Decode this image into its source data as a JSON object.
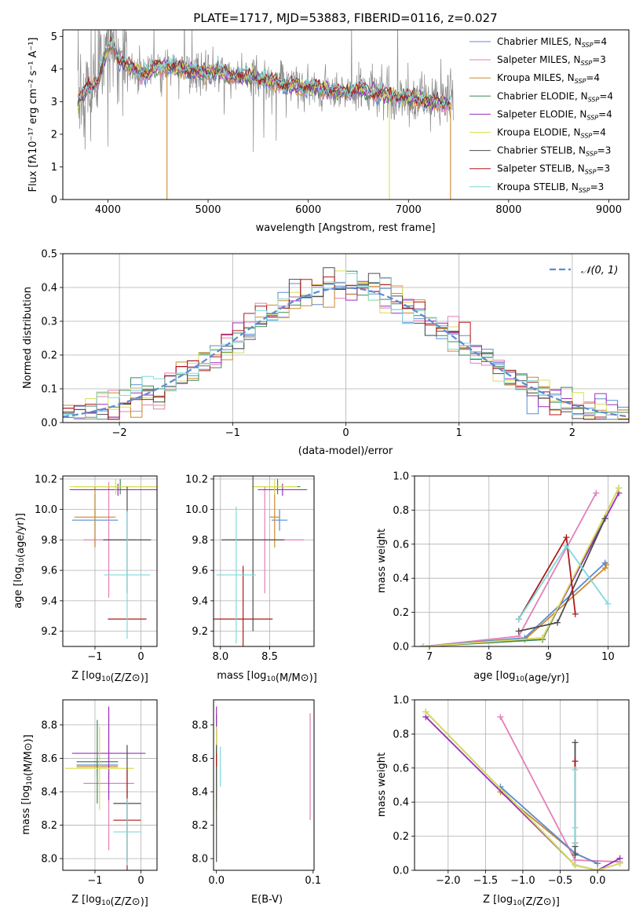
{
  "colors": {
    "chabrier_miles": "#5b8bd0",
    "salpeter_miles": "#e47fb9",
    "kroupa_miles": "#cc8a2e",
    "chabrier_elodie": "#3d8a57",
    "salpeter_elodie": "#9b2fbd",
    "kroupa_elodie": "#d8df54",
    "chabrier_stelib": "#4d4d4d",
    "salpeter_stelib": "#b01818",
    "kroupa_stelib": "#7fd8dc",
    "observed": "#888888",
    "normal_curve": "#5b8bd0",
    "mw_green": "#6ecb3b"
  },
  "chart_data": [
    {
      "id": "spectrum",
      "type": "line",
      "title": "PLATE=1717, MJD=53883, FIBERID=0116, z=0.027",
      "xlabel": "wavelength [Angstrom, rest frame]",
      "ylabel": "Flux [fλ10⁻¹⁷ erg cm⁻² s⁻¹ A⁻¹]",
      "xlim": [
        3550,
        9200
      ],
      "ylim": [
        0,
        5.2
      ],
      "xticks": [
        4000,
        5000,
        6000,
        7000,
        8000,
        9000
      ],
      "yticks": [
        0,
        1,
        2,
        3,
        4,
        5
      ],
      "grid": false,
      "legend_position": "top-right",
      "legend": [
        {
          "label": "Chabrier MILES, N",
          "sub": "SSP",
          "tail": "=4",
          "color_key": "chabrier_miles"
        },
        {
          "label": "Salpeter MILES, N",
          "sub": "SSP",
          "tail": "=3",
          "color_key": "salpeter_miles"
        },
        {
          "label": "Kroupa MILES, N",
          "sub": "SSP",
          "tail": "=4",
          "color_key": "kroupa_miles"
        },
        {
          "label": "Chabrier ELODIE, N",
          "sub": "SSP",
          "tail": "=4",
          "color_key": "chabrier_elodie"
        },
        {
          "label": "Salpeter ELODIE, N",
          "sub": "SSP",
          "tail": "=4",
          "color_key": "salpeter_elodie"
        },
        {
          "label": "Kroupa ELODIE, N",
          "sub": "SSP",
          "tail": "=4",
          "color_key": "kroupa_elodie"
        },
        {
          "label": "Chabrier STELIB, N",
          "sub": "SSP",
          "tail": "=3",
          "color_key": "chabrier_stelib"
        },
        {
          "label": "Salpeter STELIB, N",
          "sub": "SSP",
          "tail": "=3",
          "color_key": "salpeter_stelib"
        },
        {
          "label": "Kroupa STELIB, N",
          "sub": "SSP",
          "tail": "=3",
          "color_key": "kroupa_stelib"
        }
      ],
      "continuum": [
        [
          3700,
          3.0
        ],
        [
          3800,
          3.4
        ],
        [
          3900,
          3.6
        ],
        [
          3950,
          4.2
        ],
        [
          4000,
          4.6
        ],
        [
          4050,
          4.8
        ],
        [
          4100,
          4.3
        ],
        [
          4200,
          4.1
        ],
        [
          4300,
          3.9
        ],
        [
          4400,
          3.85
        ],
        [
          4500,
          4.1
        ],
        [
          4600,
          4.05
        ],
        [
          4700,
          4.0
        ],
        [
          4800,
          3.95
        ],
        [
          4900,
          3.9
        ],
        [
          5000,
          3.85
        ],
        [
          5100,
          3.95
        ],
        [
          5200,
          3.8
        ],
        [
          5300,
          3.8
        ],
        [
          5400,
          3.75
        ],
        [
          5500,
          3.7
        ],
        [
          5600,
          3.65
        ],
        [
          5700,
          3.6
        ],
        [
          5800,
          3.5
        ],
        [
          5900,
          3.45
        ],
        [
          6000,
          3.45
        ],
        [
          6100,
          3.4
        ],
        [
          6200,
          3.35
        ],
        [
          6300,
          3.3
        ],
        [
          6400,
          3.3
        ],
        [
          6500,
          3.4
        ],
        [
          6600,
          3.3
        ],
        [
          6700,
          3.25
        ],
        [
          6800,
          3.2
        ],
        [
          6900,
          3.15
        ],
        [
          7000,
          3.1
        ],
        [
          7100,
          3.05
        ],
        [
          7200,
          3.0
        ],
        [
          7300,
          2.95
        ],
        [
          7400,
          2.95
        ]
      ],
      "model_dropouts": [
        {
          "x": 4590,
          "color_key": "kroupa_miles"
        },
        {
          "x": 6810,
          "color_key": "kroupa_elodie"
        },
        {
          "x": 7420,
          "color_key": "kroupa_miles"
        }
      ]
    },
    {
      "id": "residuals",
      "type": "line",
      "xlabel": "(data-model)/error",
      "ylabel": "Normed distribution",
      "xlim": [
        -2.5,
        2.5
      ],
      "ylim": [
        0,
        0.5
      ],
      "xticks": [
        -2,
        -1,
        0,
        1,
        2
      ],
      "yticks": [
        0.0,
        0.1,
        0.2,
        0.3,
        0.4,
        0.5
      ],
      "grid": true,
      "legend_position": "top-right",
      "legend_label": "𝒩(0, 1)",
      "normal_curve": {
        "mean": 0,
        "sigma": 1
      },
      "histogram_bin_width": 0.1
    },
    {
      "id": "age-vs-z",
      "type": "scatter",
      "xlabel": "Z [log₁₀(Z/Z⊙)]",
      "ylabel": "age  [log₁₀(age/yr)]",
      "xlim": [
        -1.7,
        0.35
      ],
      "ylim": [
        9.1,
        10.22
      ],
      "xticks": [
        -1,
        0
      ],
      "yticks": [
        9.2,
        9.4,
        9.6,
        9.8,
        10.0,
        10.2
      ],
      "grid": true,
      "points": [
        {
          "x": -1.0,
          "y": 9.93,
          "xerr": 0.5,
          "yerr": 0.17,
          "color_key": "chabrier_miles"
        },
        {
          "x": -0.7,
          "y": 9.8,
          "xerr": 0.55,
          "yerr": 0.38,
          "color_key": "salpeter_miles"
        },
        {
          "x": -1.0,
          "y": 9.95,
          "xerr": 0.45,
          "yerr": 0.2,
          "color_key": "kroupa_miles"
        },
        {
          "x": -0.45,
          "y": 10.15,
          "xerr": 1.0,
          "yerr": 0.05,
          "color_key": "chabrier_elodie"
        },
        {
          "x": -0.5,
          "y": 10.13,
          "xerr": 1.05,
          "yerr": 0.04,
          "color_key": "salpeter_elodie"
        },
        {
          "x": -0.55,
          "y": 10.15,
          "xerr": 1.0,
          "yerr": 0.05,
          "color_key": "kroupa_elodie"
        },
        {
          "x": -0.3,
          "y": 9.8,
          "xerr": 0.52,
          "yerr": 0.35,
          "color_key": "chabrier_stelib"
        },
        {
          "x": -0.3,
          "y": 9.28,
          "xerr": 0.42,
          "yerr": 0.0,
          "color_key": "salpeter_stelib"
        },
        {
          "x": -0.3,
          "y": 9.57,
          "xerr": 0.5,
          "yerr": 0.42,
          "color_key": "kroupa_stelib"
        }
      ]
    },
    {
      "id": "age-vs-mass",
      "type": "scatter",
      "xlabel": "mass [log₁₀(M/M⊙)]",
      "ylabel": "",
      "xlim": [
        7.93,
        8.95
      ],
      "ylim": [
        9.1,
        10.22
      ],
      "xticks": [
        8.0,
        8.5
      ],
      "yticks": [
        9.2,
        9.4,
        9.6,
        9.8,
        10.0,
        10.2
      ],
      "grid": true,
      "points": [
        {
          "x": 8.6,
          "y": 9.93,
          "xerr": 0.08,
          "yerr": 0.07,
          "color_key": "chabrier_miles"
        },
        {
          "x": 8.45,
          "y": 9.8,
          "xerr": 0.4,
          "yerr": 0.35,
          "color_key": "salpeter_miles"
        },
        {
          "x": 8.55,
          "y": 9.95,
          "xerr": 0.05,
          "yerr": 0.2,
          "color_key": "kroupa_miles"
        },
        {
          "x": 8.58,
          "y": 10.15,
          "xerr": 0.23,
          "yerr": 0.05,
          "color_key": "chabrier_elodie"
        },
        {
          "x": 8.63,
          "y": 10.13,
          "xerr": 0.25,
          "yerr": 0.04,
          "color_key": "salpeter_elodie"
        },
        {
          "x": 8.55,
          "y": 10.15,
          "xerr": 0.23,
          "yerr": 0.05,
          "color_key": "kroupa_elodie"
        },
        {
          "x": 8.33,
          "y": 9.8,
          "xerr": 0.32,
          "yerr": 0.6,
          "color_key": "chabrier_stelib"
        },
        {
          "x": 8.23,
          "y": 9.28,
          "xerr": 0.3,
          "yerr": 0.35,
          "color_key": "salpeter_stelib"
        },
        {
          "x": 8.16,
          "y": 9.57,
          "xerr": 0.2,
          "yerr": 0.45,
          "color_key": "kroupa_stelib"
        }
      ]
    },
    {
      "id": "mw-vs-age",
      "type": "line",
      "xlabel": "age  [log₁₀(age/yr)]",
      "ylabel": "mass weight",
      "xlim": [
        6.75,
        10.35
      ],
      "ylim": [
        0,
        1.0
      ],
      "xticks": [
        7,
        8,
        9,
        10
      ],
      "yticks": [
        0.0,
        0.2,
        0.4,
        0.6,
        0.8,
        1.0
      ],
      "grid": true,
      "series": [
        {
          "color_key": "salpeter_miles",
          "points": [
            [
              6.9,
              0.0
            ],
            [
              8.5,
              0.06
            ],
            [
              9.8,
              0.9
            ]
          ]
        },
        {
          "color_key": "kroupa_miles",
          "points": [
            [
              6.9,
              0.0
            ],
            [
              8.6,
              0.04
            ],
            [
              9.95,
              0.46
            ],
            [
              9.97,
              0.48
            ]
          ]
        },
        {
          "color_key": "chabrier_miles",
          "points": [
            [
              6.9,
              0.0
            ],
            [
              8.6,
              0.05
            ],
            [
              9.95,
              0.49
            ]
          ]
        },
        {
          "color_key": "chabrier_elodie",
          "points": [
            [
              6.9,
              0.0
            ],
            [
              8.9,
              0.04
            ],
            [
              10.18,
              0.93
            ]
          ]
        },
        {
          "color_key": "salpeter_elodie",
          "points": [
            [
              6.9,
              0.0
            ],
            [
              8.9,
              0.05
            ],
            [
              10.18,
              0.9
            ]
          ]
        },
        {
          "color_key": "kroupa_elodie",
          "points": [
            [
              6.9,
              0.0
            ],
            [
              8.9,
              0.05
            ],
            [
              10.18,
              0.93
            ]
          ]
        },
        {
          "color_key": "chabrier_stelib",
          "points": [
            [
              8.5,
              0.09
            ],
            [
              9.15,
              0.14
            ],
            [
              9.95,
              0.75
            ]
          ]
        },
        {
          "color_key": "salpeter_stelib",
          "points": [
            [
              8.5,
              0.16
            ],
            [
              9.3,
              0.64
            ],
            [
              9.45,
              0.19
            ]
          ]
        },
        {
          "color_key": "kroupa_stelib",
          "points": [
            [
              8.5,
              0.16
            ],
            [
              9.3,
              0.59
            ],
            [
              10.0,
              0.25
            ]
          ]
        }
      ]
    },
    {
      "id": "mass-vs-z",
      "type": "scatter",
      "xlabel": "Z [log₁₀(Z/Z⊙)]",
      "ylabel": "mass [log₁₀(M/M⊙)]",
      "xlim": [
        -1.7,
        0.35
      ],
      "ylim": [
        7.93,
        8.95
      ],
      "xticks": [
        -1,
        0
      ],
      "yticks": [
        8.0,
        8.2,
        8.4,
        8.6,
        8.8
      ],
      "grid": true,
      "points": [
        {
          "x": -0.95,
          "y": 8.56,
          "xerr": 0.45,
          "yerr": 0.04,
          "color_key": "chabrier_miles"
        },
        {
          "x": -0.7,
          "y": 8.45,
          "xerr": 0.55,
          "yerr": 0.4,
          "color_key": "salpeter_miles"
        },
        {
          "x": -0.95,
          "y": 8.55,
          "xerr": 0.45,
          "yerr": 0.05,
          "color_key": "kroupa_miles"
        },
        {
          "x": -0.95,
          "y": 8.58,
          "xerr": 0.45,
          "yerr": 0.25,
          "color_key": "chabrier_elodie"
        },
        {
          "x": -0.7,
          "y": 8.63,
          "xerr": 0.8,
          "yerr": 0.28,
          "color_key": "salpeter_elodie"
        },
        {
          "x": -0.9,
          "y": 8.54,
          "xerr": 0.75,
          "yerr": 0.25,
          "color_key": "kroupa_elodie"
        },
        {
          "x": -0.3,
          "y": 8.33,
          "xerr": 0.3,
          "yerr": 0.35,
          "color_key": "chabrier_stelib"
        },
        {
          "x": -0.3,
          "y": 8.23,
          "xerr": 0.3,
          "yerr": 0.3,
          "color_key": "salpeter_stelib"
        },
        {
          "x": -0.3,
          "y": 8.16,
          "xerr": 0.3,
          "yerr": 0.2,
          "color_key": "kroupa_stelib"
        }
      ]
    },
    {
      "id": "mass-vs-ebv",
      "type": "scatter",
      "xlabel": "E(B-V)",
      "ylabel": "",
      "xlim": [
        -0.003,
        0.101
      ],
      "ylim": [
        7.93,
        8.95
      ],
      "xticks": [
        0.0,
        0.1
      ],
      "yticks": [
        8.0,
        8.2,
        8.4,
        8.6,
        8.8
      ],
      "grid": false,
      "points": [
        {
          "x": 0.0,
          "y": 8.56,
          "xerr": 0,
          "yerr": 0.04,
          "color_key": "chabrier_miles"
        },
        {
          "x": 0.097,
          "y": 8.55,
          "xerr": 0,
          "yerr": 0.32,
          "color_key": "salpeter_miles"
        },
        {
          "x": 0.0,
          "y": 8.55,
          "xerr": 0,
          "yerr": 0.05,
          "color_key": "kroupa_miles"
        },
        {
          "x": 0.0,
          "y": 8.58,
          "xerr": 0,
          "yerr": 0.28,
          "color_key": "chabrier_elodie"
        },
        {
          "x": 0.0,
          "y": 8.63,
          "xerr": 0,
          "yerr": 0.28,
          "color_key": "salpeter_elodie"
        },
        {
          "x": 0.0,
          "y": 8.54,
          "xerr": 0,
          "yerr": 0.25,
          "color_key": "kroupa_elodie"
        },
        {
          "x": 0.0,
          "y": 8.33,
          "xerr": 0,
          "yerr": 0.35,
          "color_key": "chabrier_stelib"
        },
        {
          "x": 0.0,
          "y": 8.59,
          "xerr": 0,
          "yerr": 0.04,
          "color_key": "salpeter_stelib"
        },
        {
          "x": 0.004,
          "y": 8.55,
          "xerr": 0,
          "yerr": 0.12,
          "color_key": "kroupa_stelib"
        }
      ]
    },
    {
      "id": "mw-vs-z",
      "type": "line",
      "xlabel": "Z [log₁₀(Z/Z⊙)]",
      "ylabel": "mass weight",
      "xlim": [
        -2.45,
        0.42
      ],
      "ylim": [
        0,
        1.0
      ],
      "xticks": [
        -2.0,
        -1.5,
        -1.0,
        -0.5,
        0.0
      ],
      "yticks": [
        0.0,
        0.2,
        0.4,
        0.6,
        0.8,
        1.0
      ],
      "grid": true,
      "series": [
        {
          "color_key": "salpeter_miles",
          "points": [
            [
              -1.3,
              0.9
            ],
            [
              -0.3,
              0.06
            ],
            [
              0.3,
              0.05
            ]
          ]
        },
        {
          "color_key": "kroupa_miles",
          "points": [
            [
              -1.3,
              0.46
            ],
            [
              -0.3,
              0.1
            ],
            [
              0.0,
              0.04
            ]
          ]
        },
        {
          "color_key": "chabrier_miles",
          "points": [
            [
              -1.3,
              0.49
            ],
            [
              -0.3,
              0.1
            ],
            [
              0.0,
              0.04
            ]
          ]
        },
        {
          "color_key": "chabrier_elodie",
          "points": [
            [
              -2.3,
              0.93
            ],
            [
              -0.3,
              0.03
            ],
            [
              0.0,
              0.0
            ],
            [
              0.3,
              0.04
            ]
          ]
        },
        {
          "color_key": "salpeter_elodie",
          "points": [
            [
              -2.3,
              0.9
            ],
            [
              -0.3,
              0.03
            ],
            [
              0.0,
              0.0
            ],
            [
              0.3,
              0.07
            ]
          ]
        },
        {
          "color_key": "kroupa_elodie",
          "points": [
            [
              -2.3,
              0.93
            ],
            [
              -0.3,
              0.03
            ],
            [
              0.0,
              0.0
            ],
            [
              0.3,
              0.04
            ]
          ]
        },
        {
          "color_key": "chabrier_stelib",
          "points": [
            [
              -0.3,
              0.09
            ],
            [
              -0.3,
              0.14
            ],
            [
              -0.3,
              0.75
            ]
          ]
        },
        {
          "color_key": "salpeter_stelib",
          "points": [
            [
              -0.3,
              0.16
            ],
            [
              -0.3,
              0.64
            ]
          ]
        },
        {
          "color_key": "kroupa_stelib",
          "points": [
            [
              -0.3,
              0.16
            ],
            [
              -0.3,
              0.59
            ],
            [
              -0.3,
              0.25
            ]
          ]
        }
      ]
    }
  ]
}
